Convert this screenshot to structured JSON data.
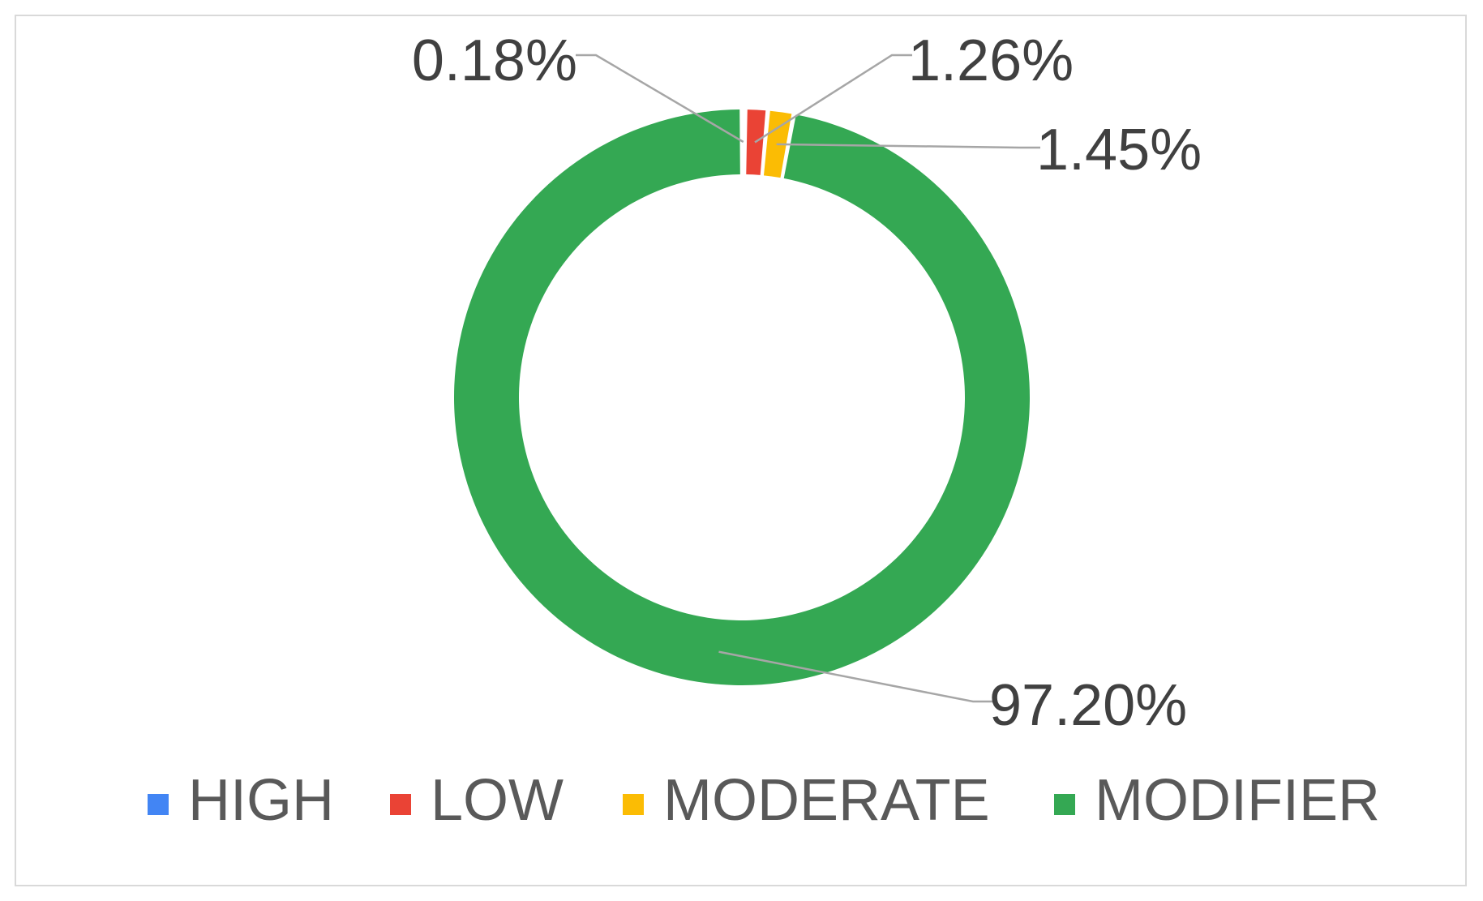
{
  "chart_data": {
    "type": "pie",
    "variant": "doughnut",
    "categories": [
      "HIGH",
      "LOW",
      "MODERATE",
      "MODIFIER"
    ],
    "values": [
      0.18,
      1.26,
      1.45,
      97.2
    ],
    "value_labels": [
      "0.18%",
      "1.26%",
      "1.45%",
      "97.20%"
    ],
    "colors": [
      "#4285f4",
      "#ea4335",
      "#fbbc04",
      "#34a853"
    ],
    "legend_position": "bottom",
    "title": ""
  }
}
